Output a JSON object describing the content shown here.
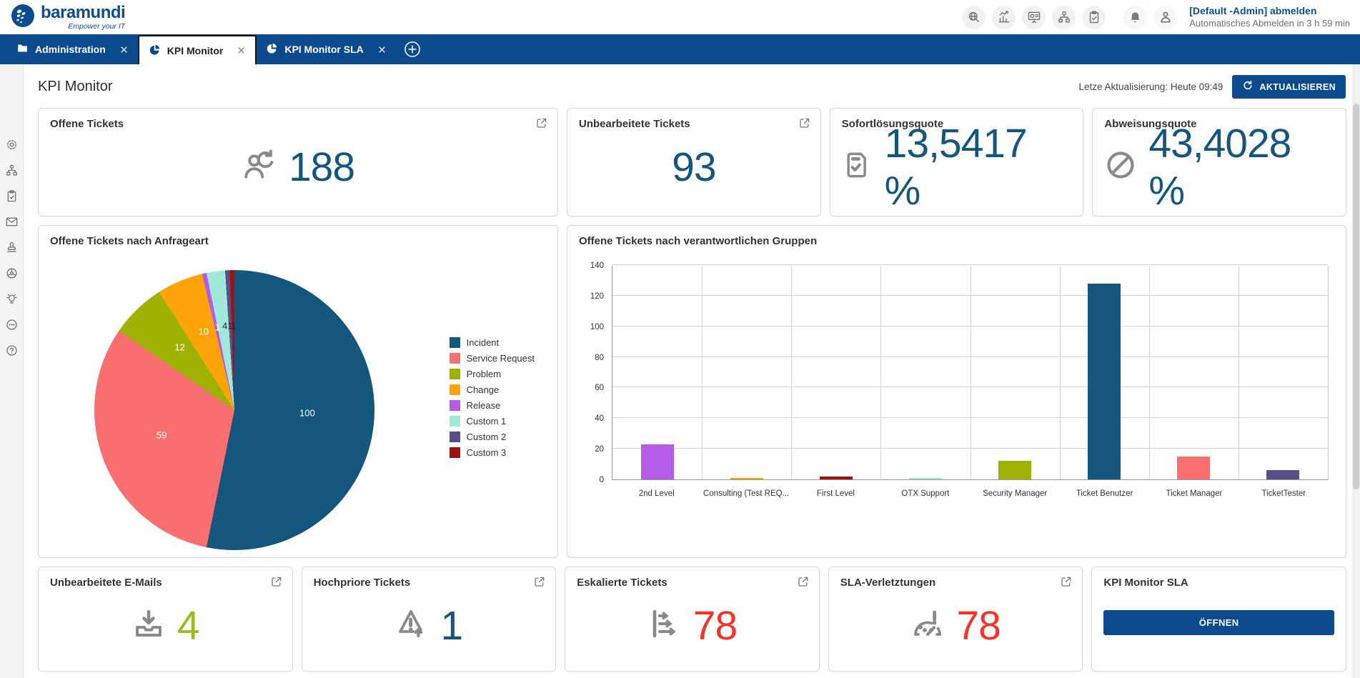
{
  "brand": {
    "name": "baramundi",
    "tagline": "Empower your IT",
    "color": "#0d4c91"
  },
  "topbar": {
    "tool_icons": [
      "zoom-search-icon",
      "statistics-icon",
      "dashboard-presentation-icon",
      "org-structure-icon",
      "task-clipboard-icon"
    ],
    "notification_icon": "bell-icon",
    "user_icon": "user-icon",
    "logout_label": "[Default -Admin] abmelden",
    "auto_logout_text": "Automatisches Abmelden in 3 h 59 min"
  },
  "tabs": [
    {
      "label": "Administration",
      "icon": "folder-icon",
      "active": false
    },
    {
      "label": "KPI Monitor",
      "icon": "pie-chart-icon",
      "active": true
    },
    {
      "label": "KPI Monitor SLA",
      "icon": "pie-chart-icon",
      "active": false
    }
  ],
  "page": {
    "title": "KPI Monitor",
    "last_update": "Letze Aktualisierung: Heute 09:49",
    "refresh_button": "AKTUALISIEREN"
  },
  "kpi_cards": [
    {
      "title": "Offene Tickets",
      "value": "188",
      "value_color": "#14567d",
      "icon": "open-tickets-person-icon",
      "has_external_link": true
    },
    {
      "title": "Unbearbeitete Tickets",
      "value": "93",
      "value_color": "#14567d",
      "icon": null,
      "has_external_link": true
    },
    {
      "title": "Sofortlösungsquote",
      "value": "13,5417 %",
      "value_color": "#14567d",
      "icon": "document-check-icon",
      "has_external_link": false
    },
    {
      "title": "Abweisungsquote",
      "value": "43,4028 %",
      "value_color": "#14567d",
      "icon": "blocked-circle-icon",
      "has_external_link": false
    }
  ],
  "bottom_cards": [
    {
      "title": "Unbearbeitete E-Mails",
      "value": "4",
      "value_color": "#93c01f",
      "icon": "inbox-download-icon",
      "has_external_link": true
    },
    {
      "title": "Hochpriore Tickets",
      "value": "1",
      "value_color": "#14567d",
      "icon": "priority-warning-icon",
      "has_external_link": true
    },
    {
      "title": "Eskalierte Tickets",
      "value": "78",
      "value_color": "#f2352b",
      "icon": "escalation-icon",
      "has_external_link": true
    },
    {
      "title": "SLA-Verletztungen",
      "value": "78",
      "value_color": "#f2352b",
      "icon": "sla-gauge-icon",
      "has_external_link": true
    },
    {
      "title": "KPI Monitor SLA",
      "button_label": "ÖFFNEN"
    }
  ],
  "sidebar_icons": [
    "settings-gear-icon",
    "org-structure-icon",
    "task-clipboard-icon",
    "mail-icon",
    "stamp-icon",
    "dial-icon",
    "idea-bulb-icon",
    "comments-icon",
    "help-icon"
  ],
  "chart_data": [
    {
      "type": "pie",
      "title": "Offene Tickets nach Anfrageart",
      "legend_position": "right",
      "total": 188,
      "series": [
        {
          "name": "Incident",
          "value": 100,
          "color": "#14567d",
          "label_color": "#ffffff",
          "label_pos": {
            "x": 76,
            "y": 51
          }
        },
        {
          "name": "Service Request",
          "value": 59,
          "color": "#f96f6f",
          "label_color": "#ffffff",
          "label_pos": {
            "x": 24,
            "y": 59
          }
        },
        {
          "name": "Problem",
          "value": 12,
          "color": "#9fb204",
          "label_color": "#ffffff",
          "label_pos": {
            "x": 30.5,
            "y": 27.5
          }
        },
        {
          "name": "Change",
          "value": 10,
          "color": "#ffa408",
          "label_color": "#ffffff",
          "label_pos": {
            "x": 39,
            "y": 22
          }
        },
        {
          "name": "Release",
          "value": 1,
          "color": "#b45ce8",
          "label_color": "#ffffff",
          "label_pos": {
            "x": 44,
            "y": 20.5
          }
        },
        {
          "name": "Custom 1",
          "value": 4,
          "color": "#9fe8da",
          "label_color": "#222222",
          "label_pos": {
            "x": 46.6,
            "y": 20
          }
        },
        {
          "name": "Custom 2",
          "value": 1,
          "color": "#575088",
          "label_color": "#222222",
          "label_pos": {
            "x": 48.4,
            "y": 20
          }
        },
        {
          "name": "Custom 3",
          "value": 1,
          "color": "#a50f0f",
          "label_color": "#222222",
          "label_pos": {
            "x": 49.7,
            "y": 20
          }
        }
      ]
    },
    {
      "type": "bar",
      "title": "Offene Tickets nach verantwortlichen Gruppen",
      "categories": [
        "2nd Level",
        "Consulting (Test REQ...",
        "First Level",
        "OTX Support",
        "Security Manager",
        "Ticket Benutzer",
        "Ticket Manager",
        "TicketTester"
      ],
      "values": [
        23,
        1,
        2,
        1,
        12,
        128,
        15,
        6
      ],
      "colors": [
        "#b45ce8",
        "#ffa408",
        "#a50f0f",
        "#9fe8da",
        "#9fb204",
        "#14567d",
        "#f96f6f",
        "#575088"
      ],
      "xlabel": "",
      "ylabel": "",
      "ylim": [
        0,
        140
      ],
      "yticks": [
        0,
        20,
        40,
        60,
        80,
        100,
        120,
        140
      ],
      "grid": true
    }
  ]
}
